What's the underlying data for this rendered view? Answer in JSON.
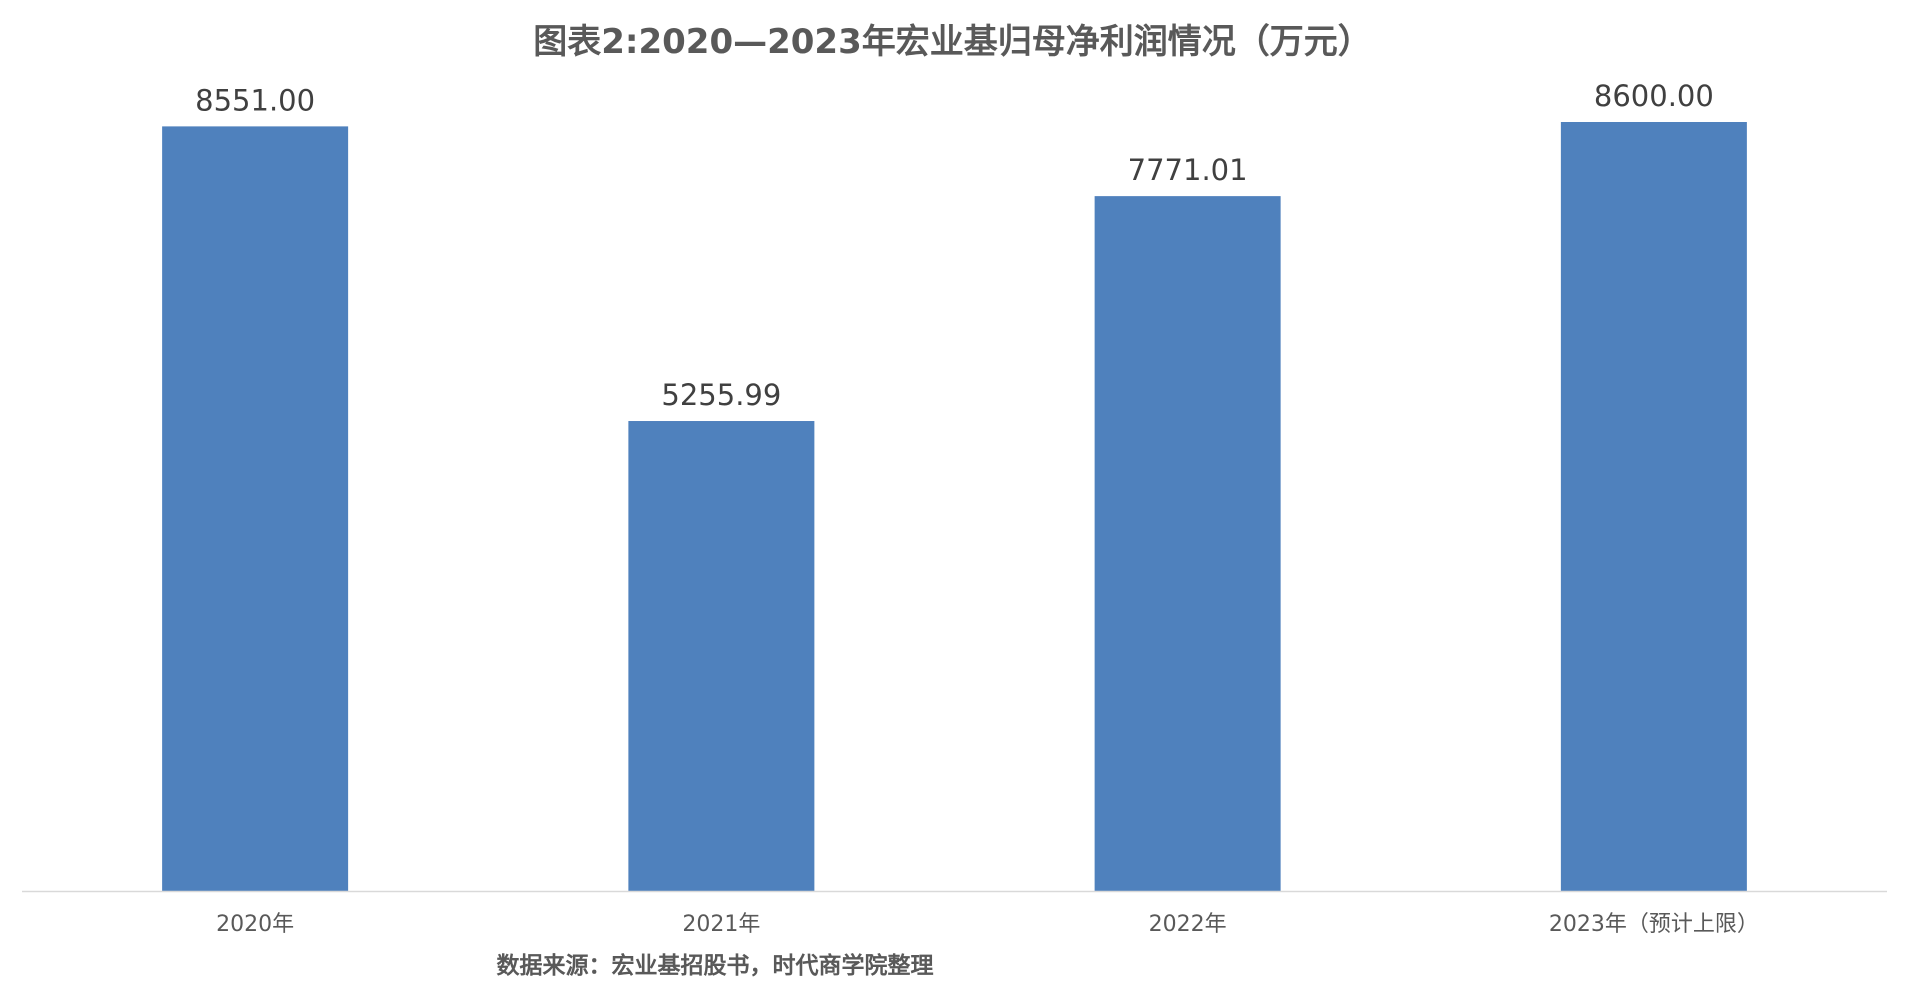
{
  "chart_data": {
    "type": "bar",
    "title": "图表2:2020—2023年宏业基归母净利润情况（万元）",
    "categories": [
      "2020年",
      "2021年",
      "2022年",
      "2023年（预计上限）"
    ],
    "values": [
      8551.0,
      5255.99,
      7771.01,
      8600.0
    ],
    "value_labels": [
      "8551.00",
      "5255.99",
      "7771.01",
      "8600.00"
    ],
    "xlabel": "",
    "ylabel": "",
    "ylim": [
      0,
      8600
    ],
    "grid": false,
    "legend": "none",
    "bar_color": "#4F81BD",
    "axis_color": "#D9D9D9"
  },
  "source_note": "数据来源：宏业基招股书，时代商学院整理"
}
